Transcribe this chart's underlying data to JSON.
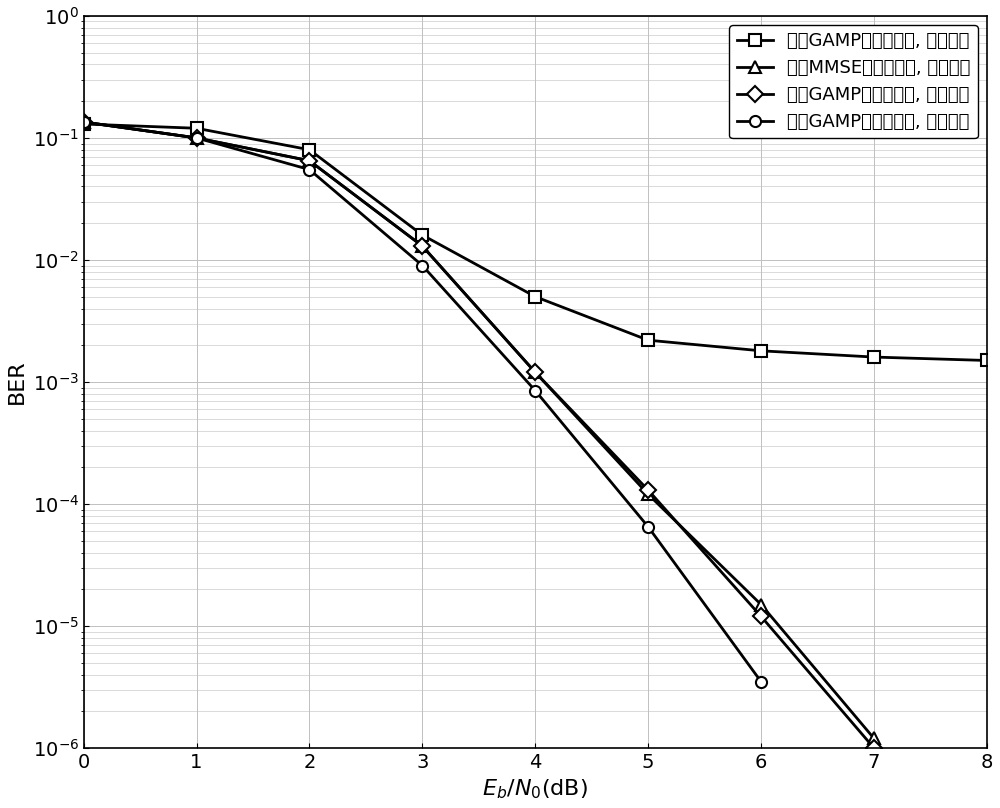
{
  "x": [
    0,
    1,
    2,
    3,
    4,
    5,
    6,
    7,
    8
  ],
  "series": [
    {
      "label": "基于GAMP的时域均衡, 离散先验",
      "marker": "s",
      "markersize": 8,
      "linewidth": 2.0,
      "y": [
        0.13,
        0.12,
        0.08,
        0.016,
        0.005,
        0.0022,
        0.0018,
        0.0016,
        0.0015
      ]
    },
    {
      "label": "基于MMSE的时域均衡, 高斯先验",
      "marker": "^",
      "markersize": 9,
      "linewidth": 2.0,
      "y": [
        0.135,
        0.1,
        0.065,
        0.013,
        0.0012,
        0.00012,
        1.5e-05,
        1.2e-06,
        null
      ]
    },
    {
      "label": "基于GAMP的频域均衡, 高斯先验",
      "marker": "D",
      "markersize": 8,
      "linewidth": 2.0,
      "y": [
        0.135,
        0.1,
        0.065,
        0.013,
        0.0012,
        0.00013,
        1.2e-05,
        1e-06,
        null
      ]
    },
    {
      "label": "基于GAMP的频域均衡, 离散先验",
      "marker": "o",
      "markersize": 8,
      "linewidth": 2.0,
      "y": [
        0.135,
        0.1,
        0.055,
        0.009,
        0.00085,
        6.5e-05,
        3.5e-06,
        null,
        null
      ]
    }
  ],
  "ylabel": "BER",
  "xlim": [
    0,
    8
  ],
  "ylim_log": [
    -6,
    0
  ],
  "grid_color": "#c0c0c0",
  "legend_loc": "upper right",
  "fontsize_label": 16,
  "fontsize_tick": 14,
  "fontsize_legend": 13
}
